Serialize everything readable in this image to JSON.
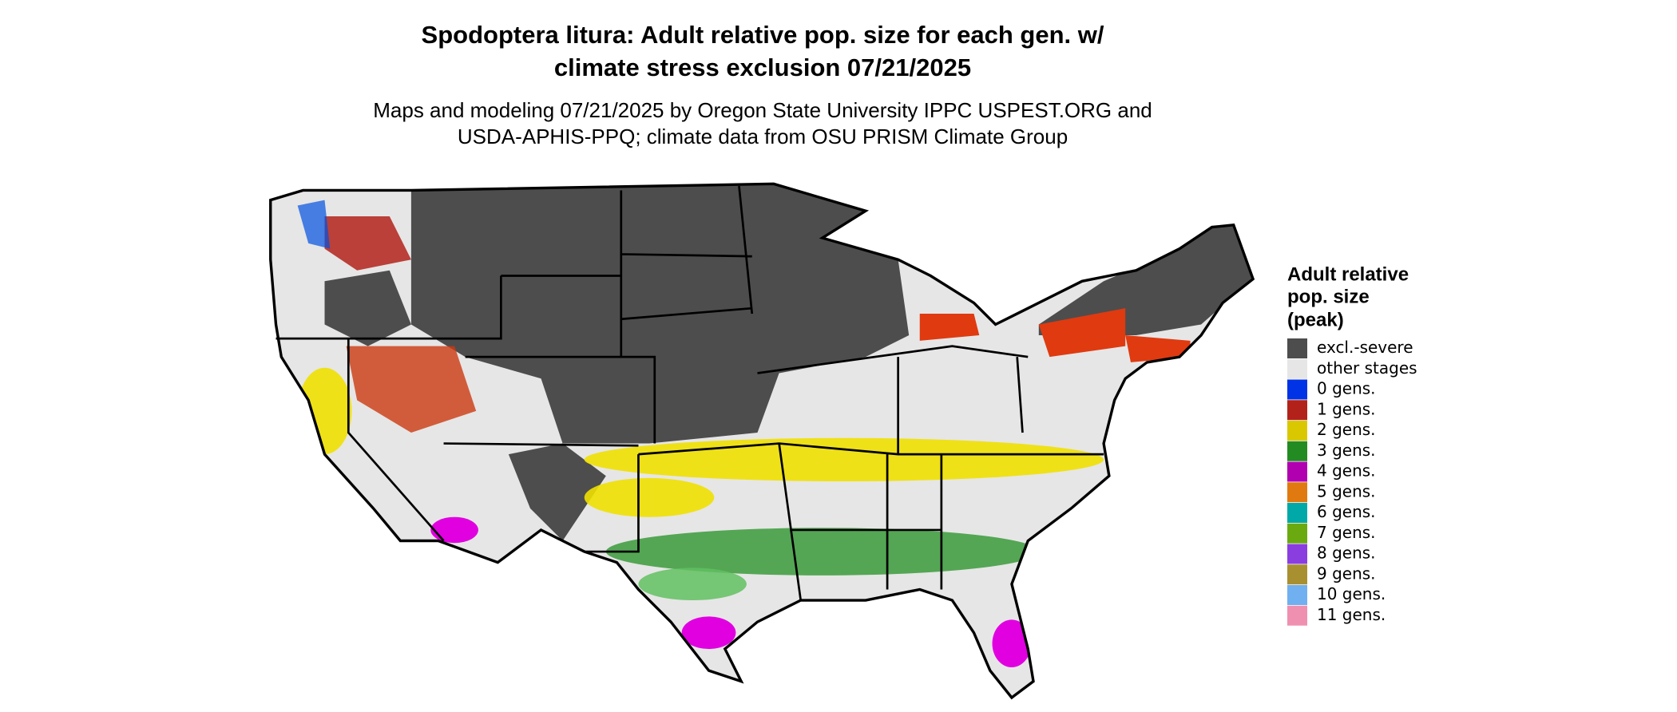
{
  "header": {
    "title_lines": [
      "Spodoptera litura: Adult relative pop. size for each gen. w/",
      "climate stress exclusion 07/21/2025"
    ],
    "subtitle_lines": [
      "Maps and modeling 07/21/2025 by Oregon State University IPPC USPEST.ORG and",
      "USDA-APHIS-PPQ; climate data from OSU PRISM Climate Group"
    ]
  },
  "legend": {
    "title_lines": [
      "Adult relative",
      "pop. size",
      "(peak)"
    ],
    "items": [
      {
        "label": "excl.-severe",
        "color": "#4d4d4d"
      },
      {
        "label": "other stages",
        "color": "#e6e6e6"
      },
      {
        "label": "0 gens.",
        "color": "#0033e6"
      },
      {
        "label": "1 gens.",
        "color": "#b2221a"
      },
      {
        "label": "2 gens.",
        "color": "#d9c800"
      },
      {
        "label": "3 gens.",
        "color": "#228b22"
      },
      {
        "label": "4 gens.",
        "color": "#b000b0"
      },
      {
        "label": "5 gens.",
        "color": "#e07a10"
      },
      {
        "label": "6 gens.",
        "color": "#00a8a8"
      },
      {
        "label": "7 gens.",
        "color": "#6aaa10"
      },
      {
        "label": "8 gens.",
        "color": "#8a3ee0"
      },
      {
        "label": "9 gens.",
        "color": "#a89030"
      },
      {
        "label": "10 gens.",
        "color": "#70b0f0"
      },
      {
        "label": "11 gens.",
        "color": "#f090b0"
      }
    ]
  }
}
